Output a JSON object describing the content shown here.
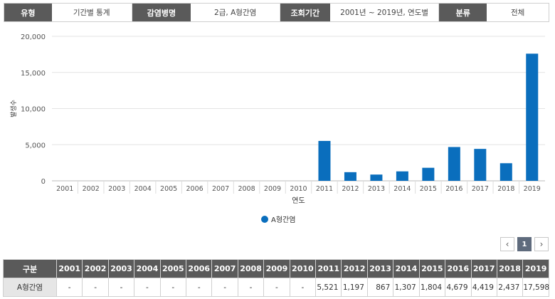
{
  "filters": [
    {
      "label": "유형",
      "value": "기간별 통계"
    },
    {
      "label": "감염병명",
      "value": "2급, A형간염"
    },
    {
      "label": "조회기간",
      "value": "2001년 ~ 2019년, 연도별"
    },
    {
      "label": "분류",
      "value": "전체"
    }
  ],
  "colors": {
    "bar": "#0a6ebd",
    "header": "#5a5a5a",
    "active_page": "#5f6b7d"
  },
  "chart_data": {
    "type": "bar",
    "categories": [
      "2001",
      "2002",
      "2003",
      "2004",
      "2005",
      "2006",
      "2007",
      "2008",
      "2009",
      "2010",
      "2011",
      "2012",
      "2013",
      "2014",
      "2015",
      "2016",
      "2017",
      "2018",
      "2019"
    ],
    "series": [
      {
        "name": "A형간염",
        "values": [
          0,
          0,
          0,
          0,
          0,
          0,
          0,
          0,
          0,
          0,
          5521,
          1197,
          867,
          1307,
          1804,
          4679,
          4419,
          2437,
          17598
        ]
      }
    ],
    "xlabel": "연도",
    "ylabel": "발생수",
    "ylim": [
      0,
      20000
    ],
    "yticks": [
      "0",
      "5,000",
      "10,000",
      "15,000",
      "20,000"
    ],
    "grid": "horizontal",
    "legend": "bottom-center"
  },
  "pagination": {
    "prev": "‹",
    "current": "1",
    "next": "›"
  },
  "table": {
    "corner": "구분",
    "years": [
      "2001",
      "2002",
      "2003",
      "2004",
      "2005",
      "2006",
      "2007",
      "2008",
      "2009",
      "2010",
      "2011",
      "2012",
      "2013",
      "2014",
      "2015",
      "2016",
      "2017",
      "2018",
      "2019"
    ],
    "rows": [
      {
        "label": "A형간염",
        "values": [
          "-",
          "-",
          "-",
          "-",
          "-",
          "-",
          "-",
          "-",
          "-",
          "-",
          "5,521",
          "1,197",
          "867",
          "1,307",
          "1,804",
          "4,679",
          "4,419",
          "2,437",
          "17,598"
        ]
      }
    ]
  }
}
